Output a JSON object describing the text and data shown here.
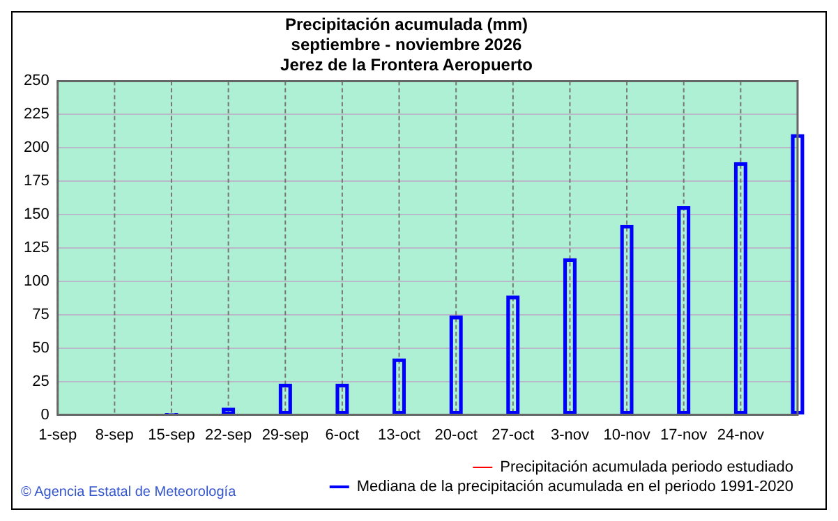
{
  "chart_data": {
    "type": "bar",
    "title": "Precipitación acumulada (mm)",
    "subtitle": "septiembre - noviembre 2026\nJerez de la Frontera Aeropuerto",
    "categories": [
      "1-sep",
      "8-sep",
      "15-sep",
      "22-sep",
      "29-sep",
      "6-oct",
      "13-oct",
      "20-oct",
      "27-oct",
      "3-nov",
      "10-nov",
      "17-nov",
      "24-nov",
      null
    ],
    "series": [
      {
        "name": "Precipitación acumulada periodo estudiado",
        "type": "line",
        "color": "#ff0000",
        "values": [
          null,
          null,
          null,
          null,
          null,
          null,
          null,
          null,
          null,
          null,
          null,
          null,
          null,
          null
        ]
      },
      {
        "name": "Mediana de la precipitación acumulada en el periodo 1991-2020",
        "color": "#0000ff",
        "values": [
          0,
          0,
          1,
          5,
          23,
          23,
          42,
          74,
          89,
          117,
          142,
          156,
          189,
          210
        ]
      }
    ],
    "ylim": [
      0,
      250
    ],
    "yticks": [
      0,
      25,
      50,
      75,
      100,
      125,
      150,
      175,
      200,
      225,
      250
    ],
    "grid": true,
    "legend": "bottom",
    "annotations": [
      "© Agencia Estatal de Meteorología"
    ]
  }
}
